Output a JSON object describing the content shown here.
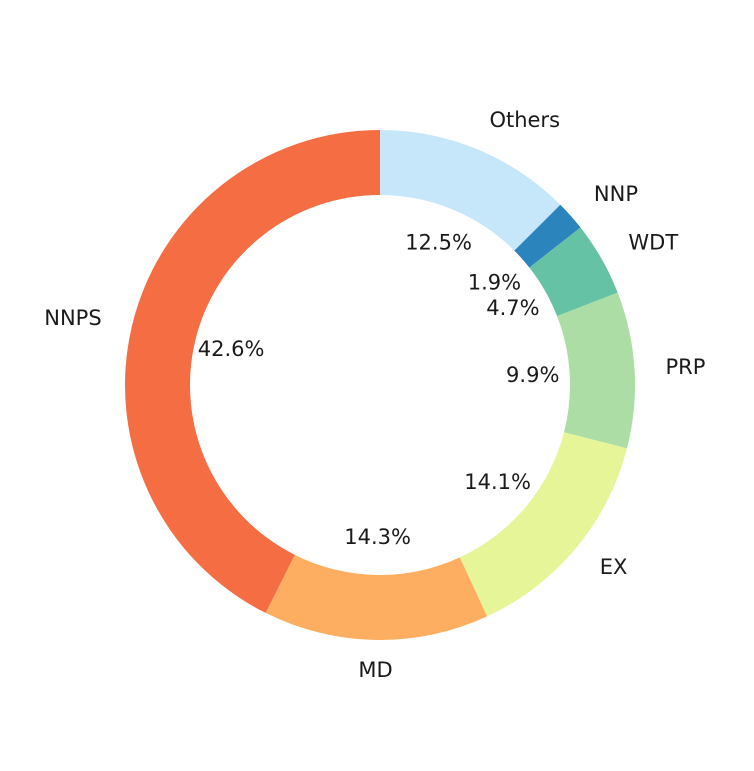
{
  "chart_data": {
    "type": "pie",
    "donut": true,
    "title": "",
    "start_angle": "top",
    "direction": "clockwise",
    "slices": [
      {
        "label": "Others",
        "value": 12.5,
        "pct_label": "12.5%",
        "color": "#c6e6fa"
      },
      {
        "label": "NNP",
        "value": 1.9,
        "pct_label": "1.9%",
        "color": "#2c84bc"
      },
      {
        "label": "WDT",
        "value": 4.7,
        "pct_label": "4.7%",
        "color": "#66c2a5"
      },
      {
        "label": "PRP",
        "value": 9.9,
        "pct_label": "9.9%",
        "color": "#abdda4"
      },
      {
        "label": "EX",
        "value": 14.1,
        "pct_label": "14.1%",
        "color": "#e6f598"
      },
      {
        "label": "MD",
        "value": 14.3,
        "pct_label": "14.3%",
        "color": "#fdae61"
      },
      {
        "label": "NNPS",
        "value": 42.6,
        "pct_label": "42.6%",
        "color": "#f46d43"
      }
    ]
  }
}
